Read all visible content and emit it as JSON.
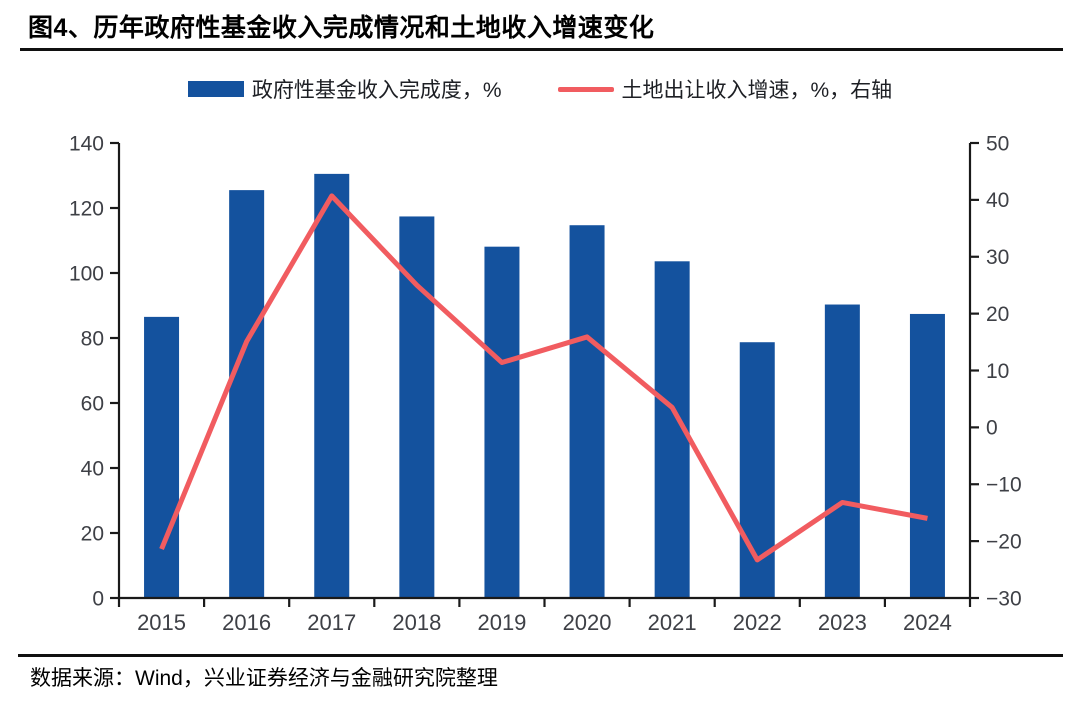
{
  "figure": {
    "title": "图4、历年政府性基金收入完成情况和土地收入增速变化",
    "source": "数据来源：Wind，兴业证券经济与金融研究院整理"
  },
  "legend": {
    "bar_label": "政府性基金收入完成度，%",
    "line_label": "土地出让收入增速，%，右轴"
  },
  "colors": {
    "bar": "#14529e",
    "line": "#f15c60",
    "axis": "#1a1a1a",
    "tick_text": "#3e4046",
    "rule": "#101010"
  },
  "chart_data": {
    "type": "bar",
    "subtype": "bar+line dual axis",
    "categories": [
      "2015",
      "2016",
      "2017",
      "2018",
      "2019",
      "2020",
      "2021",
      "2022",
      "2023",
      "2024"
    ],
    "series": [
      {
        "name": "政府性基金收入完成度，%",
        "type": "bar",
        "axis": "left",
        "color": "#14529e",
        "values": [
          86.5,
          125.5,
          130.5,
          117.4,
          108.1,
          114.7,
          103.6,
          78.7,
          90.3,
          87.4
        ]
      },
      {
        "name": "土地出让收入增速，%，右轴",
        "type": "line",
        "axis": "right",
        "color": "#f15c60",
        "values": [
          -21.4,
          15.1,
          40.7,
          25.0,
          11.4,
          15.9,
          3.5,
          -23.3,
          -13.2,
          -16.0
        ]
      }
    ],
    "left_axis": {
      "min": 0,
      "max": 140,
      "step": 20,
      "ticks": [
        0,
        20,
        40,
        60,
        80,
        100,
        120,
        140
      ]
    },
    "right_axis": {
      "min": -30,
      "max": 50,
      "step": 10,
      "ticks": [
        -30,
        -20,
        -10,
        0,
        10,
        20,
        30,
        40,
        50
      ]
    },
    "grid": false,
    "legend_position": "top",
    "title": "图4、历年政府性基金收入完成情况和土地收入增速变化",
    "xlabel": "",
    "ylabel_left": "政府性基金收入完成度，%",
    "ylabel_right": "土地出让收入增速，%"
  }
}
